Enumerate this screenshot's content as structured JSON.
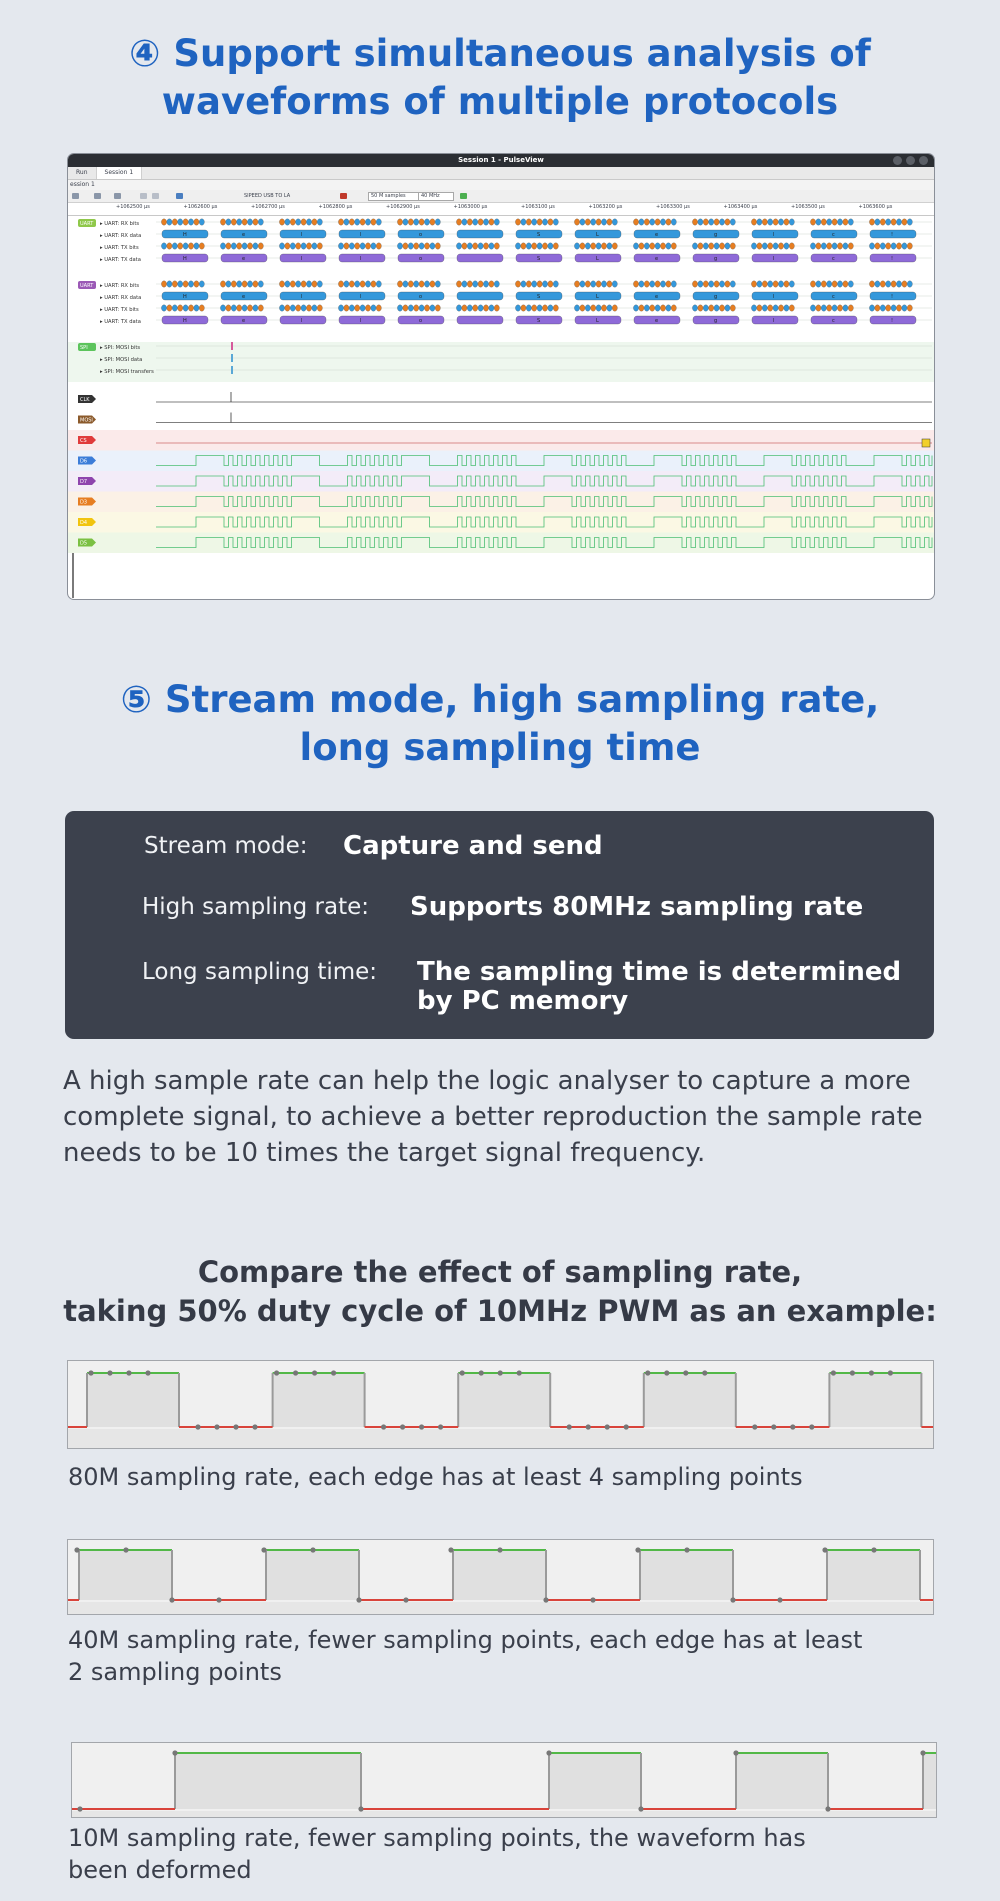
{
  "section4": {
    "title_line1": "④ Support simultaneous analysis of",
    "title_line2": "waveforms of multiple protocols"
  },
  "pulseview": {
    "window_title": "Session 1 - PulseView",
    "tabs": [
      "Run",
      "Session 1"
    ],
    "session_label": "ession 1",
    "device": "SIPEED USB TO LA",
    "samples": "50 M samples",
    "rate": "40 MHz",
    "ruler": [
      "+1062500 μs",
      "+1062600 μs",
      "+1062700 μs",
      "+1062800 μs",
      "+1062900 μs",
      "+1063000 μs",
      "+1063100 μs",
      "+1063200 μs",
      "+1063300 μs",
      "+1063400 μs",
      "+1063500 μs",
      "+1063600 μs"
    ],
    "groups": [
      {
        "badge": "UART",
        "color": "#8fc84a",
        "rows": [
          "UART: RX bits",
          "UART: RX data",
          "UART: TX bits",
          "UART: TX data"
        ]
      },
      {
        "badge": "UART",
        "color": "#9b59b6",
        "rows": [
          "UART: RX bits",
          "UART: RX data",
          "UART: TX bits",
          "UART: TX data"
        ]
      },
      {
        "badge": "SPI",
        "color": "#5cc45c",
        "rows": [
          "SPI: MOSI bits",
          "SPI: MOSI data",
          "SPI: MOSI transfers"
        ]
      }
    ],
    "data_chars": [
      "H",
      "e",
      "l",
      "l",
      "o",
      "",
      "S",
      "L",
      "e",
      "g",
      "l",
      "c",
      "!"
    ],
    "channels": [
      {
        "name": "CLK",
        "color": "#333333"
      },
      {
        "name": "MOSI",
        "color": "#8b5a2b"
      },
      {
        "name": "CS",
        "color": "#e03b3b"
      },
      {
        "name": "D6",
        "color": "#3b7dd8"
      },
      {
        "name": "D7",
        "color": "#8e44ad"
      },
      {
        "name": "D3",
        "color": "#e67e22"
      },
      {
        "name": "D4",
        "color": "#f1c40f"
      },
      {
        "name": "D5",
        "color": "#7bc043"
      }
    ]
  },
  "section5": {
    "title_line1": "⑤ Stream mode, high sampling rate,",
    "title_line2": "long sampling time"
  },
  "panel": {
    "stream_label": "Stream mode:",
    "stream_value": "Capture and send",
    "rate_label": "High sampling rate:",
    "rate_value": "Supports 80MHz sampling rate",
    "time_label": "Long sampling time:",
    "time_value_line1": "The sampling time is determined",
    "time_value_line2": "by PC memory"
  },
  "paragraph": "A high sample rate can help the logic analyser to capture a more complete signal, to achieve a better reproduction the sample rate needs to be 10 times the target signal frequency.",
  "compare": {
    "line1": "Compare the effect of sampling rate,",
    "line2": "taking  50% duty cycle of 10MHz PWM as an example:"
  },
  "captions": {
    "c80": "80M sampling rate, each edge has at least 4 sampling points",
    "c40_line1": "40M sampling rate, fewer sampling points, each edge has at least",
    "c40_line2": "2 sampling points",
    "c10_line1": "10M sampling rate, fewer sampling points, the waveform has",
    "c10_line2": "been deformed"
  },
  "colors": {
    "heading": "#1f63c0",
    "high": "#52b847",
    "low": "#d9443b",
    "panel": "#3c414d"
  }
}
